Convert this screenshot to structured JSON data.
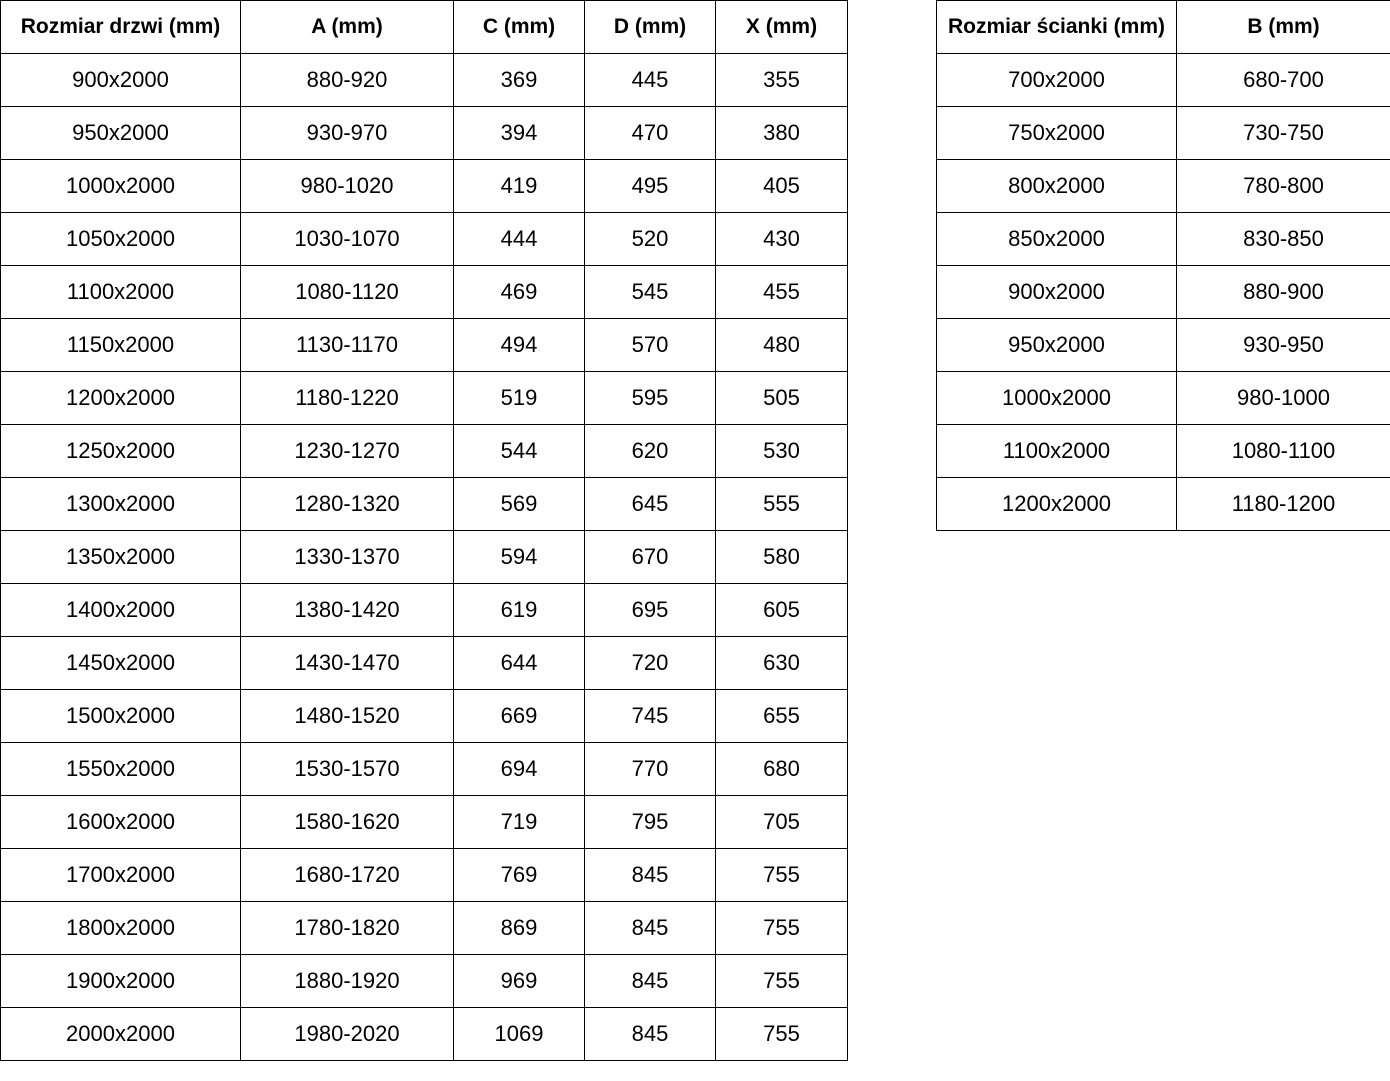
{
  "door_table": {
    "headers": [
      "Rozmiar drzwi (mm)",
      "A (mm)",
      "C (mm)",
      "D (mm)",
      "X (mm)"
    ],
    "rows": [
      [
        "900x2000",
        "880-920",
        "369",
        "445",
        "355"
      ],
      [
        "950x2000",
        "930-970",
        "394",
        "470",
        "380"
      ],
      [
        "1000x2000",
        "980-1020",
        "419",
        "495",
        "405"
      ],
      [
        "1050x2000",
        "1030-1070",
        "444",
        "520",
        "430"
      ],
      [
        "1100x2000",
        "1080-1120",
        "469",
        "545",
        "455"
      ],
      [
        "1150x2000",
        "1130-1170",
        "494",
        "570",
        "480"
      ],
      [
        "1200x2000",
        "1180-1220",
        "519",
        "595",
        "505"
      ],
      [
        "1250x2000",
        "1230-1270",
        "544",
        "620",
        "530"
      ],
      [
        "1300x2000",
        "1280-1320",
        "569",
        "645",
        "555"
      ],
      [
        "1350x2000",
        "1330-1370",
        "594",
        "670",
        "580"
      ],
      [
        "1400x2000",
        "1380-1420",
        "619",
        "695",
        "605"
      ],
      [
        "1450x2000",
        "1430-1470",
        "644",
        "720",
        "630"
      ],
      [
        "1500x2000",
        "1480-1520",
        "669",
        "745",
        "655"
      ],
      [
        "1550x2000",
        "1530-1570",
        "694",
        "770",
        "680"
      ],
      [
        "1600x2000",
        "1580-1620",
        "719",
        "795",
        "705"
      ],
      [
        "1700x2000",
        "1680-1720",
        "769",
        "845",
        "755"
      ],
      [
        "1800x2000",
        "1780-1820",
        "869",
        "845",
        "755"
      ],
      [
        "1900x2000",
        "1880-1920",
        "969",
        "845",
        "755"
      ],
      [
        "2000x2000",
        "1980-2020",
        "1069",
        "845",
        "755"
      ]
    ]
  },
  "panel_table": {
    "headers": [
      "Rozmiar ścianki (mm)",
      "B (mm)"
    ],
    "rows": [
      [
        "700x2000",
        "680-700"
      ],
      [
        "750x2000",
        "730-750"
      ],
      [
        "800x2000",
        "780-800"
      ],
      [
        "850x2000",
        "830-850"
      ],
      [
        "900x2000",
        "880-900"
      ],
      [
        "950x2000",
        "930-950"
      ],
      [
        "1000x2000",
        "980-1000"
      ],
      [
        "1100x2000",
        "1080-1100"
      ],
      [
        "1200x2000",
        "1180-1200"
      ]
    ]
  }
}
